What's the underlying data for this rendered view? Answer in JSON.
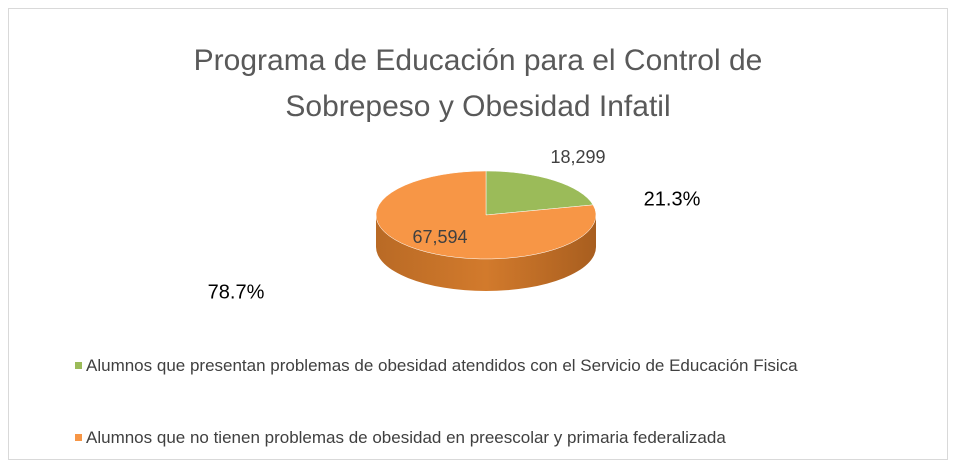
{
  "chart_data": {
    "type": "pie3d",
    "title": [
      "Programa de Educación para el Control de",
      "Sobrepeso y Obesidad Infatil"
    ],
    "categories": [
      "Alumnos que presentan problemas de obesidad atendidos con el Servicio de Educación Fisica",
      "Alumnos que no tienen problemas de obesidad en preescolar y primaria federalizada"
    ],
    "values": [
      18299,
      67594
    ],
    "value_labels": [
      "18,299",
      "67,594"
    ],
    "percents": [
      21.3,
      78.7
    ],
    "percent_labels": [
      "21.3%",
      "78.7%"
    ],
    "colors": [
      "#9bbb59",
      "#f79646"
    ],
    "legend": "bottom"
  }
}
